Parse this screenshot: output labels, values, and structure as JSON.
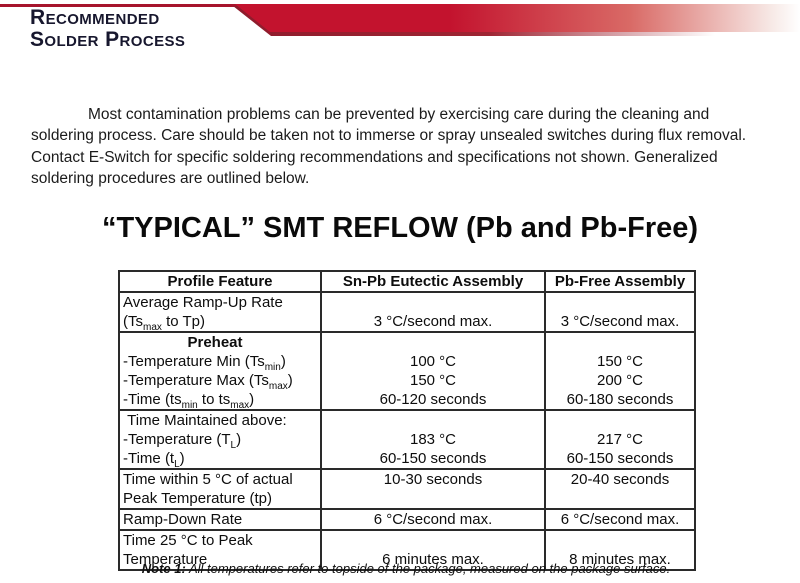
{
  "header": {
    "line1": "Recommended",
    "line2": "Solder Process",
    "banner_color": "#c3132e",
    "banner_edge_color": "#8e1b2c",
    "thin_line_color": "#a6142c"
  },
  "intro": {
    "text": "Most contamination problems can be prevented by exercising care during the cleaning and soldering process. Care should be taken not to immerse or spray unsealed switches during flux removal. Contact E-Switch for specific soldering recommendations and specifications not shown. Generalized soldering procedures are outlined below."
  },
  "title": {
    "text": "“TYPICAL” SMT REFLOW (Pb and Pb-Free)"
  },
  "table": {
    "headers": [
      "Profile Feature",
      "Sn-Pb Eutectic Assembly",
      "Pb-Free Assembly"
    ],
    "rows": [
      {
        "valign": "bottom",
        "feature": [
          "Average Ramp-Up Rate",
          "(Ts~max~ to Tp)"
        ],
        "snpb": [
          "3 °C/second max."
        ],
        "pbfree": [
          "3 °C/second max."
        ]
      },
      {
        "valign": "bottom",
        "feature": [
          {
            "t": "Preheat",
            "b": true,
            "c": true
          },
          "-Temperature Min (Ts~min~)",
          "-Temperature Max (Ts~max~)",
          "-Time (ts~min~ to ts~max~)"
        ],
        "snpb": [
          "100 °C",
          "150 °C",
          "60-120 seconds"
        ],
        "pbfree": [
          "150 °C",
          "200 °C",
          "60-180 seconds"
        ]
      },
      {
        "valign": "bottom",
        "feature": [
          " Time Maintained above:",
          "-Temperature (T~L~)",
          "-Time (t~L~)"
        ],
        "snpb": [
          "183 °C",
          "60-150 seconds"
        ],
        "pbfree": [
          "217 °C",
          "60-150 seconds"
        ]
      },
      {
        "valign": "top",
        "feature": [
          "Time within 5 °C of actual",
          "Peak Temperature (tp)"
        ],
        "snpb": [
          "10-30 seconds"
        ],
        "pbfree": [
          "20-40 seconds"
        ]
      },
      {
        "valign": "top",
        "feature": [
          "Ramp-Down Rate"
        ],
        "snpb": [
          "6 °C/second max."
        ],
        "pbfree": [
          "6 °C/second max."
        ]
      },
      {
        "valign": "bottom",
        "feature": [
          "Time 25 °C to Peak",
          "Temperature"
        ],
        "snpb": [
          "6 minutes max."
        ],
        "pbfree": [
          "8 minutes max."
        ]
      }
    ]
  },
  "note": {
    "label": "Note 1:",
    "text": " All temperatures refer to topside of the package, measured on the package surface."
  }
}
